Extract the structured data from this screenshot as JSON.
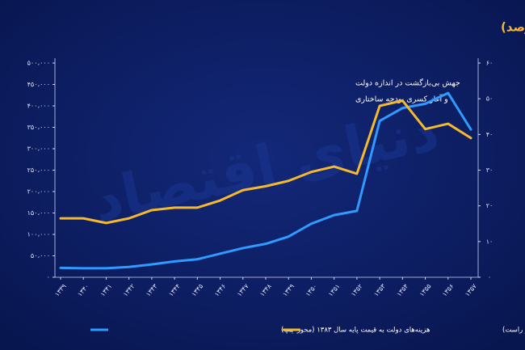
{
  "chart_data": {
    "type": "line",
    "title": "هزینه‌های دولت (میلیارد ریال) و سهم هزینه‌های دولت از هزینه ناخالص داخلی (درصد)",
    "annotations": [
      "جهش بی‌بازگشت در اندازه دولت",
      "و آغاز کسری بودجه ساختاری"
    ],
    "watermark": "دنیای اقتصاد",
    "categories": [
      "۱۳۳۹",
      "۱۳۴۰",
      "۱۳۴۱",
      "۱۳۴۲",
      "۱۳۴۳",
      "۱۳۴۴",
      "۱۳۴۵",
      "۱۳۴۶",
      "۱۳۴۷",
      "۱۳۴۸",
      "۱۳۴۹",
      "۱۳۵۰",
      "۱۳۵۱",
      "۱۳۵۲",
      "۱۳۵۳",
      "۱۳۵۴",
      "۱۳۵۵",
      "۱۳۵۶",
      "۱۳۵۷"
    ],
    "series": [
      {
        "name": "هزینه‌های دولت به قیمت پایه سال ۱۳۸۳ (محور چپ)",
        "color": "#2f9bff",
        "values": [
          22000,
          21000,
          21000,
          24000,
          30000,
          37000,
          42000,
          55000,
          68000,
          78000,
          95000,
          125000,
          145000,
          155000,
          365000,
          395000,
          405000,
          430000,
          345000
        ]
      },
      {
        "name": "سهم هزینه‌های دولت از هزینه ناخالص داخلی (درصد-محور راست)",
        "color": "#f5b92e",
        "axis": "y2",
        "values": [
          16.5,
          16.5,
          15.2,
          16.5,
          18.8,
          19.5,
          19.5,
          21.5,
          24.4,
          25.5,
          27,
          29.5,
          31,
          29,
          48,
          49.5,
          41.5,
          43,
          39
        ]
      }
    ],
    "ylim": [
      0,
      500000
    ],
    "yticks": [
      {
        "value": 0,
        "label": "۰"
      },
      {
        "value": 50000,
        "label": "۵۰،۰۰۰"
      },
      {
        "value": 100000,
        "label": "۱۰۰،۰۰۰"
      },
      {
        "value": 150000,
        "label": "۱۵۰،۰۰۰"
      },
      {
        "value": 200000,
        "label": "۲۰۰،۰۰۰"
      },
      {
        "value": 250000,
        "label": "۲۵۰،۰۰۰"
      },
      {
        "value": 300000,
        "label": "۳۰۰،۰۰۰"
      },
      {
        "value": 350000,
        "label": "۳۵۰،۰۰۰"
      },
      {
        "value": 400000,
        "label": "۴۰۰،۰۰۰"
      },
      {
        "value": 450000,
        "label": "۴۵۰،۰۰۰"
      },
      {
        "value": 500000,
        "label": "۵۰۰،۰۰۰"
      }
    ],
    "y2lim": [
      0,
      60
    ],
    "y2ticks": [
      {
        "value": 0,
        "label": "۰"
      },
      {
        "value": 10,
        "label": "۱۰"
      },
      {
        "value": 20,
        "label": "۲۰"
      },
      {
        "value": 30,
        "label": "۳۰"
      },
      {
        "value": 40,
        "label": "۴۰"
      },
      {
        "value": 50,
        "label": "۵۰"
      },
      {
        "value": 60,
        "label": "۶۰"
      }
    ]
  }
}
